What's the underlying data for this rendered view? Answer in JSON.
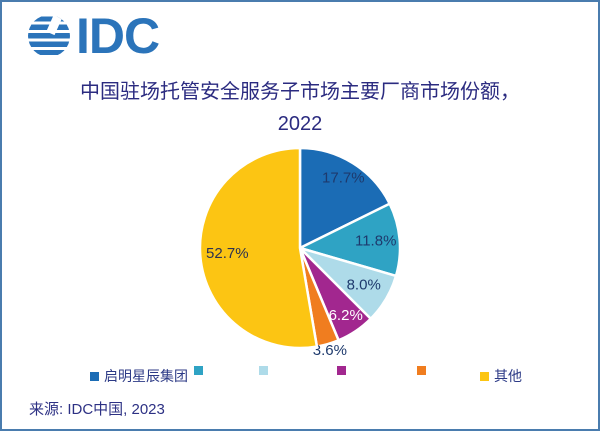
{
  "header": {
    "logo_text": "IDC"
  },
  "title": {
    "line1": "中国驻场托管安全服务子市场主要厂商市场份额，",
    "line2": "2022"
  },
  "chart_data": {
    "type": "pie",
    "title": "中国驻场托管安全服务子市场主要厂商市场份额，2022",
    "unit": "%",
    "start_angle_deg": 0,
    "direction": "clockwise",
    "slices": [
      {
        "label": "启明星辰集团",
        "value": 17.7,
        "display": "17.7%",
        "color": "#1b6cb5",
        "label_color": "#1e3a6d"
      },
      {
        "label": "",
        "value": 11.8,
        "display": "11.8%",
        "color": "#2fa3c4",
        "label_color": "#1e3a6d"
      },
      {
        "label": "",
        "value": 8.0,
        "display": "8.0%",
        "color": "#aedbe9",
        "label_color": "#1e3a6d"
      },
      {
        "label": "",
        "value": 6.2,
        "display": "6.2%",
        "color": "#a2278f",
        "label_color": "#ffffff"
      },
      {
        "label": "",
        "value": 3.6,
        "display": "3.6%",
        "color": "#f07d1f",
        "label_color": "#1e3a6d"
      },
      {
        "label": "其他",
        "value": 52.7,
        "display": "52.7%",
        "color": "#fcc513",
        "label_color": "#2e3350"
      }
    ],
    "legend_position": "bottom"
  },
  "legend": {
    "items": [
      {
        "label": "启明星辰集团",
        "color": "#1b6cb5"
      },
      {
        "label": "",
        "color": "#2fa3c4"
      },
      {
        "label": "",
        "color": "#aedbe9"
      },
      {
        "label": "",
        "color": "#a2278f"
      },
      {
        "label": "",
        "color": "#f07d1f"
      },
      {
        "label": "其他",
        "color": "#fcc513"
      }
    ]
  },
  "footer": {
    "source": "来源: IDC中国, 2023"
  }
}
